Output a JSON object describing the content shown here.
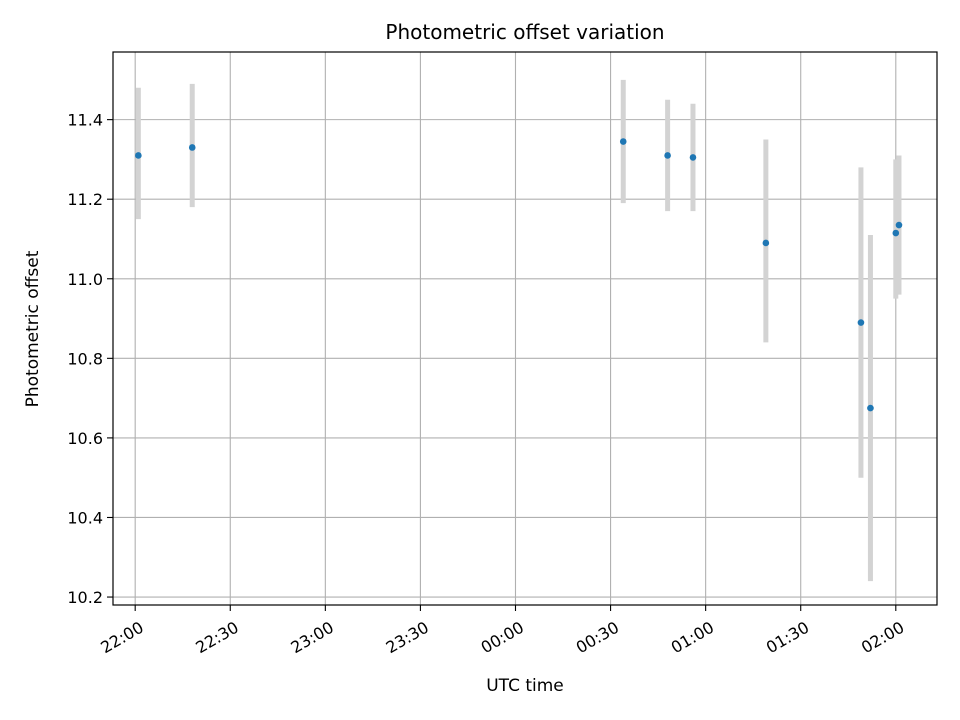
{
  "chart_data": {
    "type": "scatter",
    "title": "Photometric offset variation",
    "xlabel": "UTC time",
    "ylabel": "Photometric offset",
    "x_unit": "UTC clock time (HH:MM), overnight",
    "xlim": [
      "21:53",
      "02:13"
    ],
    "ylim": [
      10.18,
      11.57
    ],
    "x_ticks": [
      "22:00",
      "22:30",
      "23:00",
      "23:30",
      "00:00",
      "00:30",
      "01:00",
      "01:30",
      "02:00"
    ],
    "y_ticks": [
      10.2,
      10.4,
      10.6,
      10.8,
      11.0,
      11.2,
      11.4
    ],
    "grid": true,
    "marker_color": "#1f77b4",
    "errorbar_color": "#d3d3d3",
    "points": [
      {
        "time": "22:01",
        "y": 11.31,
        "yerr_low": 11.15,
        "yerr_high": 11.48
      },
      {
        "time": "22:18",
        "y": 11.33,
        "yerr_low": 11.18,
        "yerr_high": 11.49
      },
      {
        "time": "00:34",
        "y": 11.345,
        "yerr_low": 11.19,
        "yerr_high": 11.5
      },
      {
        "time": "00:48",
        "y": 11.31,
        "yerr_low": 11.17,
        "yerr_high": 11.45
      },
      {
        "time": "00:56",
        "y": 11.305,
        "yerr_low": 11.17,
        "yerr_high": 11.44
      },
      {
        "time": "01:19",
        "y": 11.09,
        "yerr_low": 10.84,
        "yerr_high": 11.35
      },
      {
        "time": "01:49",
        "y": 10.89,
        "yerr_low": 10.5,
        "yerr_high": 11.28
      },
      {
        "time": "01:52",
        "y": 10.675,
        "yerr_low": 10.24,
        "yerr_high": 11.11
      },
      {
        "time": "02:00",
        "y": 11.115,
        "yerr_low": 10.95,
        "yerr_high": 11.3
      },
      {
        "time": "02:01",
        "y": 11.135,
        "yerr_low": 10.96,
        "yerr_high": 11.31
      }
    ]
  }
}
